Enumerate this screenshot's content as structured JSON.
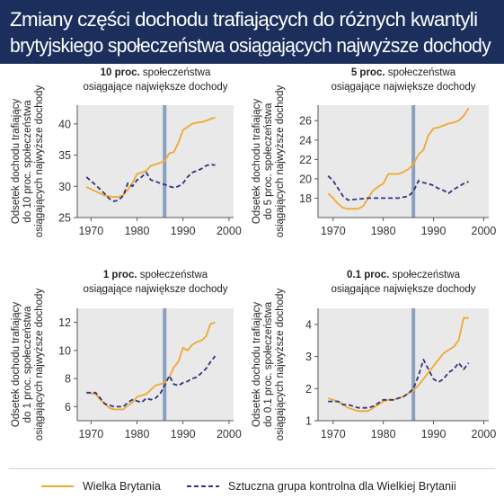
{
  "header": {
    "title_line1": "Zmiany części dochodu trafiających do różnych kwantyli",
    "title_line2": "brytyjskiego społeczeństwa osiągających najwyższe dochody"
  },
  "colors": {
    "uk": "#f0a830",
    "control": "#2e3580",
    "vline": "#8aa0c0",
    "panel_bg": "#e9e9e9",
    "header_bg": "#1c2f5c"
  },
  "legend": {
    "uk": "Wielka Brytania",
    "control": "Sztuczna grupa kontrolna dla Wielkiej Brytanii"
  },
  "chart_data": [
    {
      "type": "line",
      "title_bold": "10 proc.",
      "title_rest": " społeczeństwa",
      "title_line2": "osiągające największe dochody",
      "ylabel_lines": [
        "Odsetek dochodu trafiający",
        "do 10 proc. społeczeństwa",
        "osiągających najwyższe dochody"
      ],
      "xlim": [
        1967,
        2001
      ],
      "ylim": [
        25,
        43
      ],
      "xticks": [
        1970,
        1980,
        1990,
        2000
      ],
      "yticks": [
        25,
        30,
        35,
        40
      ],
      "vline": 1986,
      "series": [
        {
          "key": "uk",
          "x": [
            1969,
            1971,
            1973,
            1975,
            1976,
            1977,
            1978,
            1979,
            1980,
            1981,
            1982,
            1983,
            1984,
            1985,
            1986,
            1987,
            1988,
            1989,
            1990,
            1991,
            1992,
            1993,
            1994,
            1995,
            1996,
            1997
          ],
          "y": [
            29.9,
            29.2,
            28.5,
            28.3,
            28.3,
            28.6,
            29.5,
            30.5,
            32.0,
            32.2,
            32.5,
            33.3,
            33.5,
            33.8,
            34.0,
            35.3,
            35.5,
            37.0,
            39.0,
            39.5,
            40.0,
            40.2,
            40.3,
            40.5,
            40.8,
            41.0
          ]
        },
        {
          "key": "control",
          "x": [
            1969,
            1971,
            1973,
            1974,
            1975,
            1976,
            1977,
            1978,
            1979,
            1980,
            1981,
            1982,
            1983,
            1984,
            1985,
            1986,
            1987,
            1988,
            1989,
            1990,
            1991,
            1992,
            1993,
            1994,
            1995,
            1996,
            1997
          ],
          "y": [
            31.5,
            30.2,
            28.8,
            28.0,
            27.6,
            27.8,
            28.5,
            30.5,
            30.0,
            31.0,
            31.5,
            32.2,
            31.0,
            30.8,
            30.5,
            30.3,
            30.0,
            29.8,
            30.0,
            30.5,
            31.5,
            32.2,
            32.5,
            32.8,
            33.3,
            33.5,
            33.4
          ]
        }
      ]
    },
    {
      "type": "line",
      "title_bold": "5 proc.",
      "title_rest": " społeczeństwa",
      "title_line2": "osiągające największe dochody",
      "ylabel_lines": [
        "Odsetek dochodu trafiający",
        "do 5 proc. społeczeństwa",
        "osiągających najwyższe dochody"
      ],
      "xlim": [
        1967,
        2001
      ],
      "ylim": [
        16,
        27.6
      ],
      "xticks": [
        1970,
        1980,
        1990,
        2000
      ],
      "yticks": [
        18,
        20,
        22,
        24,
        26
      ],
      "vline": 1986,
      "series": [
        {
          "key": "uk",
          "x": [
            1969,
            1970,
            1971,
            1972,
            1973,
            1974,
            1975,
            1976,
            1977,
            1978,
            1979,
            1980,
            1981,
            1982,
            1983,
            1984,
            1985,
            1986,
            1987,
            1988,
            1989,
            1990,
            1991,
            1992,
            1993,
            1994,
            1995,
            1996,
            1997
          ],
          "y": [
            18.5,
            18.0,
            17.4,
            17.0,
            16.9,
            16.9,
            16.9,
            17.2,
            18.0,
            18.8,
            19.2,
            19.5,
            20.5,
            20.5,
            20.5,
            20.7,
            21.0,
            21.5,
            22.5,
            23.0,
            24.5,
            25.2,
            25.3,
            25.5,
            25.7,
            25.8,
            26.0,
            26.5,
            27.3
          ]
        },
        {
          "key": "control",
          "x": [
            1969,
            1970,
            1971,
            1972,
            1973,
            1975,
            1977,
            1979,
            1981,
            1983,
            1985,
            1986,
            1987,
            1988,
            1989,
            1990,
            1991,
            1992,
            1993,
            1994,
            1995,
            1996,
            1997
          ],
          "y": [
            20.3,
            19.8,
            19.0,
            18.2,
            17.8,
            17.9,
            18.0,
            18.0,
            18.0,
            18.0,
            18.2,
            18.7,
            19.8,
            19.6,
            19.5,
            19.3,
            19.0,
            18.8,
            18.5,
            18.9,
            19.2,
            19.5,
            19.7
          ]
        }
      ]
    },
    {
      "type": "line",
      "title_bold": "1 proc.",
      "title_rest": " społeczeństwa",
      "title_line2": "osiągające największe dochody",
      "ylabel_lines": [
        "Odsetek dochodu trafiający",
        "do 1 proc. społeczeństwa",
        "osiągających najwyższe dochody"
      ],
      "xlim": [
        1967,
        2001
      ],
      "ylim": [
        5,
        13
      ],
      "xticks": [
        1970,
        1980,
        1990,
        2000
      ],
      "yticks": [
        6,
        8,
        10,
        12
      ],
      "vline": 1986,
      "series": [
        {
          "key": "uk",
          "x": [
            1969,
            1971,
            1972,
            1973,
            1974,
            1975,
            1976,
            1977,
            1978,
            1979,
            1980,
            1981,
            1982,
            1983,
            1984,
            1985,
            1986,
            1987,
            1988,
            1989,
            1990,
            1991,
            1992,
            1993,
            1994,
            1995,
            1996,
            1997
          ],
          "y": [
            7.0,
            6.9,
            6.5,
            6.2,
            5.9,
            5.8,
            5.8,
            5.8,
            6.1,
            6.3,
            6.7,
            6.8,
            6.9,
            7.2,
            7.5,
            7.6,
            7.7,
            8.1,
            8.8,
            9.2,
            10.2,
            10.0,
            10.4,
            10.6,
            10.7,
            11.0,
            11.9,
            12.0
          ]
        },
        {
          "key": "control",
          "x": [
            1969,
            1971,
            1972,
            1973,
            1974,
            1975,
            1976,
            1977,
            1978,
            1979,
            1980,
            1981,
            1982,
            1983,
            1984,
            1985,
            1986,
            1987,
            1988,
            1989,
            1990,
            1991,
            1992,
            1993,
            1994,
            1995,
            1996,
            1997
          ],
          "y": [
            7.0,
            7.0,
            6.6,
            6.2,
            6.1,
            6.0,
            6.0,
            6.0,
            6.3,
            6.5,
            6.4,
            6.3,
            6.6,
            6.5,
            6.6,
            6.9,
            7.5,
            8.2,
            7.6,
            7.5,
            7.7,
            7.8,
            8.0,
            8.1,
            8.4,
            8.7,
            9.2,
            9.6
          ]
        }
      ]
    },
    {
      "type": "line",
      "title_bold": "0.1 proc.",
      "title_rest": " społeczeństwa",
      "title_line2": "osiągające największe dochody",
      "ylabel_lines": [
        "Odsetek dochodu trafiający",
        "do 0.1 proc. społeczeństwa",
        "osiągających najwyższe dochody"
      ],
      "xlim": [
        1967,
        2001
      ],
      "ylim": [
        1,
        4.5
      ],
      "xticks": [
        1970,
        1980,
        1990,
        2000
      ],
      "yticks": [
        1,
        2,
        3,
        4
      ],
      "vline": 1986,
      "series": [
        {
          "key": "uk",
          "x": [
            1969,
            1971,
            1972,
            1973,
            1974,
            1975,
            1976,
            1977,
            1978,
            1979,
            1980,
            1981,
            1982,
            1983,
            1984,
            1985,
            1986,
            1987,
            1988,
            1989,
            1990,
            1991,
            1992,
            1993,
            1994,
            1995,
            1996,
            1997
          ],
          "y": [
            1.7,
            1.6,
            1.5,
            1.4,
            1.35,
            1.3,
            1.3,
            1.3,
            1.4,
            1.5,
            1.6,
            1.65,
            1.65,
            1.7,
            1.75,
            1.85,
            1.95,
            2.1,
            2.3,
            2.5,
            2.7,
            2.9,
            3.1,
            3.2,
            3.3,
            3.5,
            4.2,
            4.2
          ]
        },
        {
          "key": "control",
          "x": [
            1969,
            1971,
            1972,
            1973,
            1974,
            1975,
            1976,
            1977,
            1978,
            1979,
            1980,
            1981,
            1982,
            1983,
            1984,
            1985,
            1986,
            1987,
            1988,
            1989,
            1990,
            1991,
            1992,
            1993,
            1994,
            1995,
            1996,
            1997
          ],
          "y": [
            1.6,
            1.6,
            1.5,
            1.5,
            1.45,
            1.4,
            1.4,
            1.4,
            1.45,
            1.55,
            1.65,
            1.65,
            1.65,
            1.7,
            1.75,
            1.85,
            2.0,
            2.4,
            2.9,
            2.6,
            2.3,
            2.2,
            2.3,
            2.5,
            2.6,
            2.8,
            2.6,
            2.8
          ]
        }
      ]
    }
  ]
}
